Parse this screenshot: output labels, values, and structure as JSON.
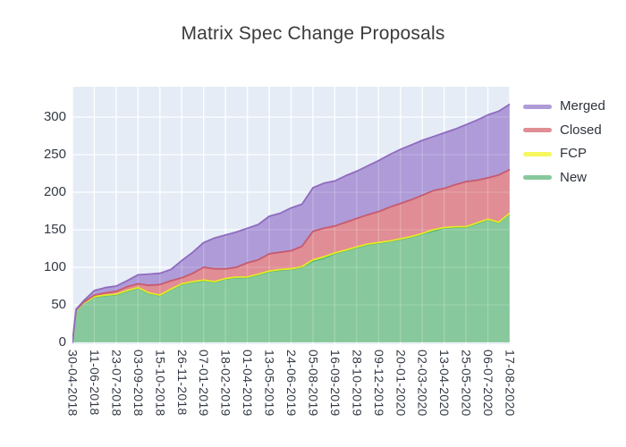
{
  "title": "Matrix Spec Change Proposals",
  "chart_data": {
    "type": "area",
    "stacked": true,
    "title": "Matrix Spec Change Proposals",
    "xlabel": "",
    "ylabel": "",
    "ylim": [
      0,
      343
    ],
    "grid": true,
    "plot_bg": "#e5ecf6",
    "grid_color": "#ffffff",
    "legend_position": "right",
    "legend": [
      {
        "label": "Merged",
        "color": "#ae9bd8"
      },
      {
        "label": "Closed",
        "color": "#e08d95"
      },
      {
        "label": "FCP",
        "color": "#f7f75e"
      },
      {
        "label": "New",
        "color": "#87c89c"
      }
    ],
    "y_ticks": [
      "0",
      "50",
      "100",
      "150",
      "200",
      "250",
      "300"
    ],
    "y_tick_values": [
      0,
      50,
      100,
      150,
      200,
      250,
      300
    ],
    "x_tick_labels": [
      "30-04-2018",
      "11-06-2018",
      "23-07-2018",
      "03-09-2018",
      "15-10-2018",
      "26-11-2018",
      "07-01-2019",
      "18-02-2019",
      "01-04-2019",
      "13-05-2019",
      "24-06-2019",
      "05-08-2019",
      "16-09-2019",
      "28-10-2019",
      "09-12-2019",
      "20-01-2020",
      "02-03-2020",
      "13-04-2020",
      "25-05-2020",
      "06-07-2020",
      "17-08-2020"
    ],
    "x": [
      "30-04-2018",
      "07-05-2018",
      "21-05-2018",
      "11-06-2018",
      "02-07-2018",
      "23-07-2018",
      "13-08-2018",
      "03-09-2018",
      "24-09-2018",
      "15-10-2018",
      "05-11-2018",
      "26-11-2018",
      "17-12-2018",
      "07-01-2019",
      "28-01-2019",
      "18-02-2019",
      "11-03-2019",
      "01-04-2019",
      "22-04-2019",
      "13-05-2019",
      "03-06-2019",
      "24-06-2019",
      "15-07-2019",
      "05-08-2019",
      "26-08-2019",
      "16-09-2019",
      "07-10-2019",
      "28-10-2019",
      "18-11-2019",
      "09-12-2019",
      "30-12-2019",
      "20-01-2020",
      "10-02-2020",
      "02-03-2020",
      "23-03-2020",
      "13-04-2020",
      "04-05-2020",
      "25-05-2020",
      "15-06-2020",
      "06-07-2020",
      "27-07-2020",
      "17-08-2020"
    ],
    "days_since_start": [
      0,
      7,
      21,
      42,
      63,
      84,
      105,
      126,
      147,
      168,
      189,
      210,
      231,
      252,
      273,
      294,
      315,
      336,
      357,
      378,
      399,
      420,
      441,
      462,
      483,
      504,
      525,
      546,
      567,
      588,
      609,
      630,
      651,
      672,
      693,
      714,
      735,
      756,
      777,
      798,
      819,
      840
    ],
    "series": [
      {
        "name": "New",
        "fill": "#87c89c",
        "line": "#44b578",
        "values": [
          0,
          42,
          52,
          60,
          62,
          63,
          68,
          72,
          65,
          62,
          70,
          77,
          80,
          82,
          80,
          84,
          86,
          86,
          90,
          94,
          96,
          97,
          100,
          108,
          112,
          118,
          122,
          126,
          130,
          132,
          134,
          137,
          140,
          144,
          148,
          152,
          153,
          153,
          158,
          163,
          159,
          171
        ]
      },
      {
        "name": "FCP",
        "fill": "#f7f75e",
        "line": "#e8e825",
        "values": [
          0,
          0,
          0,
          1,
          1,
          1,
          1,
          1,
          1,
          1,
          1,
          1,
          1,
          1,
          1,
          1,
          1,
          1,
          1,
          1,
          1,
          1,
          1,
          2,
          2,
          1,
          1,
          1,
          1,
          1,
          1,
          1,
          1,
          1,
          2,
          1,
          1,
          1,
          1,
          1,
          1,
          1
        ]
      },
      {
        "name": "Closed",
        "fill": "#e08d95",
        "line": "#c75a6e",
        "values": [
          0,
          1,
          1,
          2,
          3,
          4,
          5,
          5,
          10,
          14,
          11,
          8,
          11,
          17,
          17,
          13,
          13,
          19,
          19,
          23,
          23,
          24,
          27,
          38,
          38,
          36,
          37,
          38,
          39,
          41,
          45,
          47,
          49,
          51,
          52,
          52,
          56,
          60,
          57,
          55,
          63,
          58
        ]
      },
      {
        "name": "Merged",
        "fill": "#ae9bd8",
        "line": "#8f6bbf",
        "values": [
          0,
          1,
          2,
          6,
          7,
          7,
          8,
          12,
          15,
          15,
          15,
          23,
          28,
          33,
          41,
          45,
          47,
          46,
          47,
          50,
          52,
          57,
          56,
          58,
          60,
          60,
          62,
          63,
          65,
          68,
          70,
          72,
          73,
          73,
          72,
          74,
          74,
          76,
          80,
          84,
          85,
          87
        ]
      }
    ]
  }
}
